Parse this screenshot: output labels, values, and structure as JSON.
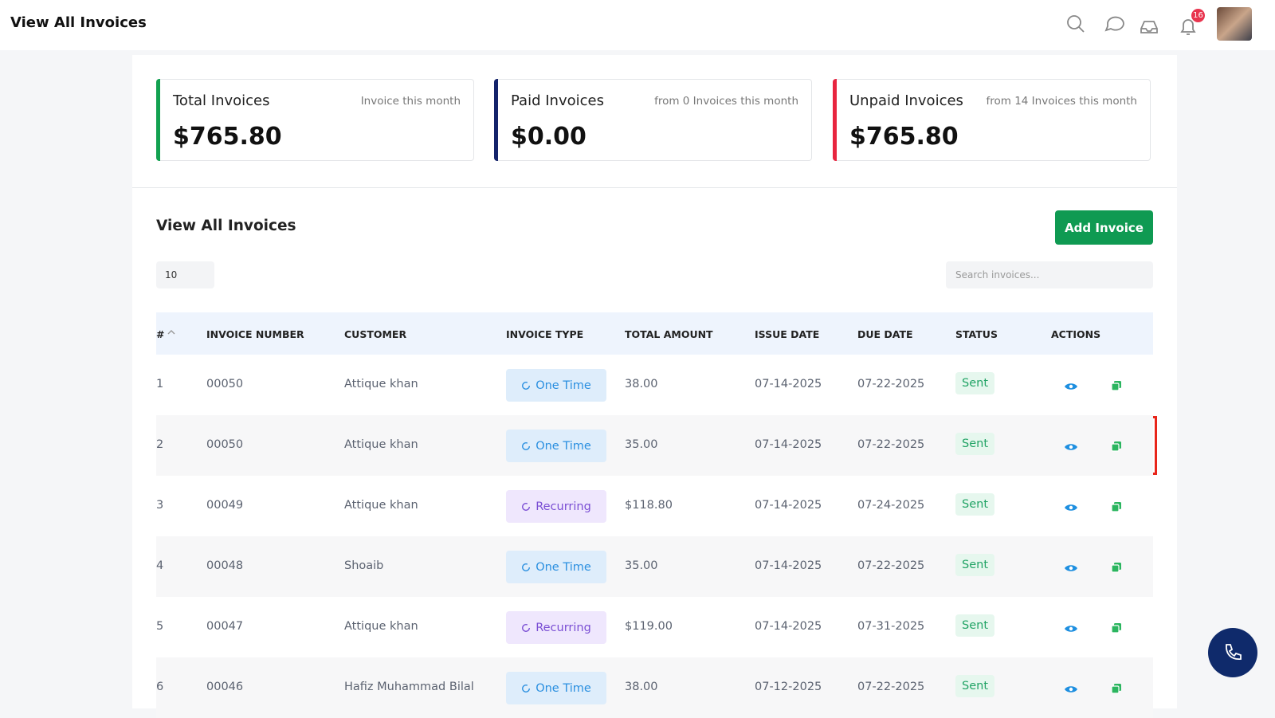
{
  "header": {
    "title": "View All Invoices",
    "notification_count": "16"
  },
  "summary_cards": [
    {
      "title": "Total Invoices",
      "note": "Invoice this month",
      "amount": "$765.80"
    },
    {
      "title": "Paid Invoices",
      "note": "from 0 Invoices this month",
      "amount": "$0.00"
    },
    {
      "title": "Unpaid Invoices",
      "note": "from 14 Invoices this month",
      "amount": "$765.80"
    }
  ],
  "section": {
    "title": "View All Invoices",
    "add_button": "Add Invoice",
    "page_size": "10",
    "search_placeholder": "Search invoices..."
  },
  "table": {
    "columns": [
      "#",
      "INVOICE NUMBER",
      "CUSTOMER",
      "INVOICE TYPE",
      "TOTAL AMOUNT",
      "ISSUE DATE",
      "DUE DATE",
      "STATUS",
      "ACTIONS"
    ],
    "rows": [
      [
        "1",
        "00050",
        "Attique khan",
        "One Time",
        "38.00",
        "07-14-2025",
        "07-22-2025",
        "Sent"
      ],
      [
        "2",
        "00050",
        "Attique khan",
        "One Time",
        "35.00",
        "07-14-2025",
        "07-22-2025",
        "Sent"
      ],
      [
        "3",
        "00049",
        "Attique khan",
        "Recurring",
        "$118.80",
        "07-14-2025",
        "07-24-2025",
        "Sent"
      ],
      [
        "4",
        "00048",
        "Shoaib",
        "One Time",
        "35.00",
        "07-14-2025",
        "07-22-2025",
        "Sent"
      ],
      [
        "5",
        "00047",
        "Attique khan",
        "Recurring",
        "$119.00",
        "07-14-2025",
        "07-31-2025",
        "Sent"
      ],
      [
        "6",
        "00046",
        "Hafiz Muhammad Bilal",
        "One Time",
        "38.00",
        "07-12-2025",
        "07-22-2025",
        "Sent"
      ]
    ]
  }
}
